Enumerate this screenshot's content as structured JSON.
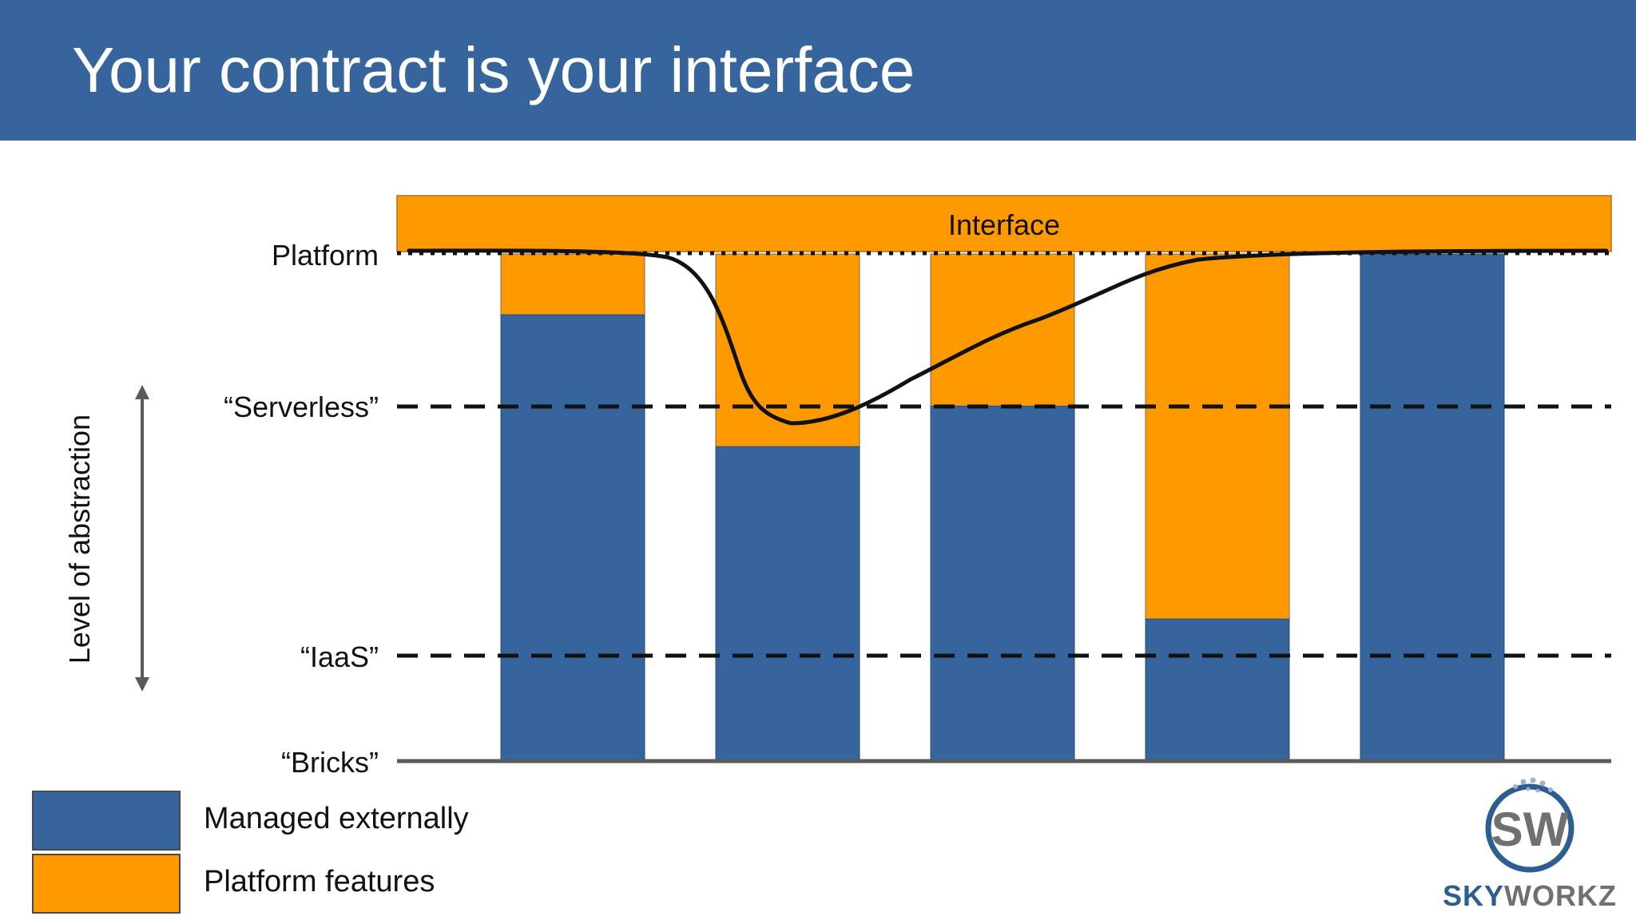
{
  "title": "Your contract is your interface",
  "diagram": {
    "interface_label": "Interface",
    "levels": [
      {
        "key": "platform",
        "label": "Platform",
        "line": "dotted"
      },
      {
        "key": "serverless",
        "label": "“Serverless”",
        "line": "dashed"
      },
      {
        "key": "iaas",
        "label": "“IaaS”",
        "line": "dashed"
      },
      {
        "key": "bricks",
        "label": "“Bricks”",
        "line": "solid"
      }
    ],
    "axis_title": "Level of abstraction",
    "columns": [
      {
        "platform_features_depth": 0.12
      },
      {
        "platform_features_depth": 0.38
      },
      {
        "platform_features_depth": 0.3
      },
      {
        "platform_features_depth": 0.72
      },
      {
        "platform_features_depth": 0.0
      }
    ]
  },
  "legend": [
    {
      "label": "Managed externally",
      "color": "#35659c"
    },
    {
      "label": "Platform features",
      "color": "#fe9900"
    }
  ],
  "colors": {
    "header": "#35659c",
    "managed": "#35659c",
    "platform": "#fe9900",
    "logo_blue": "#2c5f91",
    "logo_gray": "#707070"
  },
  "logo": {
    "monogram": "SW",
    "brand_part1": "SKY",
    "brand_part2": "WORKZ"
  }
}
